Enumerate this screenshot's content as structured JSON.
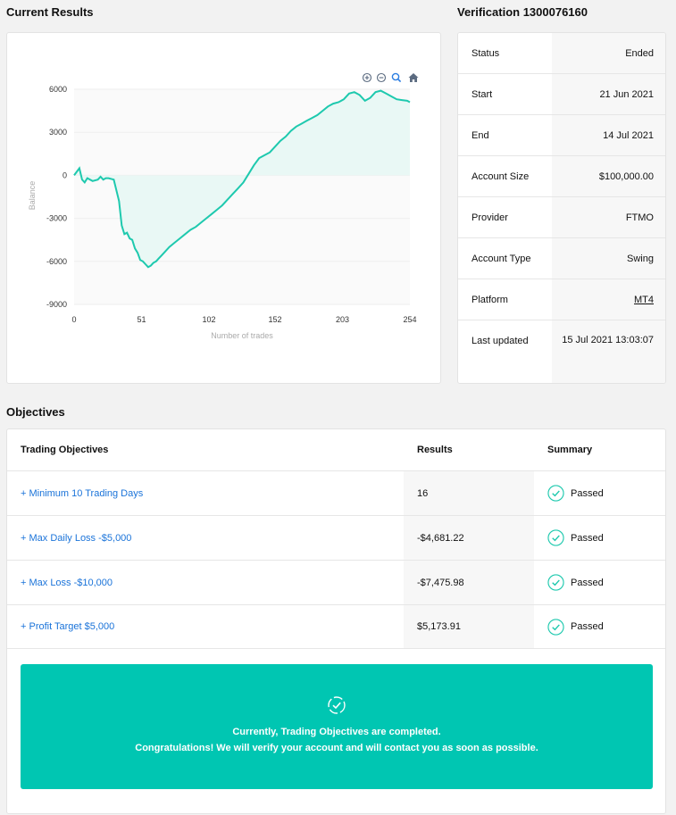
{
  "current_results": {
    "title": "Current Results",
    "toolbar": {
      "zoom_in_icon": "zoom-in-icon",
      "zoom_out_icon": "zoom-out-icon",
      "zoom_select_icon": "magnifier-icon",
      "reset_icon": "home-icon"
    }
  },
  "chart_data": {
    "type": "area",
    "xlabel": "Number of trades",
    "ylabel": "Balance",
    "xlim": [
      0,
      254
    ],
    "ylim": [
      -9000,
      6000
    ],
    "x_ticks": [
      "0",
      "51",
      "102",
      "152",
      "203",
      "254"
    ],
    "y_ticks": [
      "6000",
      "3000",
      "0",
      "-3000",
      "-6000",
      "-9000"
    ],
    "line_color": "#1ec9ae",
    "fill_color": "#e9f8f5",
    "series": [
      {
        "x": [
          0,
          4,
          6,
          8,
          10,
          14,
          18,
          20,
          22,
          24,
          26,
          30,
          34,
          36,
          38,
          40,
          42,
          44,
          46,
          48,
          50,
          52,
          54,
          56,
          58,
          60,
          62,
          64,
          66,
          68,
          72,
          76,
          80,
          84,
          88,
          92,
          96,
          100,
          104,
          108,
          112,
          116,
          120,
          124,
          128,
          132,
          136,
          140,
          144,
          148,
          152,
          156,
          160,
          164,
          168,
          172,
          176,
          180,
          184,
          188,
          192,
          196,
          200,
          204,
          208,
          212,
          216,
          220,
          224,
          228,
          232,
          236,
          240,
          244,
          248,
          252,
          254
        ],
        "y": [
          0,
          500,
          -300,
          -500,
          -200,
          -400,
          -300,
          -100,
          -300,
          -200,
          -200,
          -300,
          -1800,
          -3500,
          -4100,
          -4000,
          -4400,
          -4500,
          -5100,
          -5400,
          -5900,
          -6000,
          -6200,
          -6400,
          -6300,
          -6100,
          -6000,
          -5800,
          -5600,
          -5400,
          -5000,
          -4700,
          -4400,
          -4100,
          -3800,
          -3600,
          -3300,
          -3000,
          -2700,
          -2400,
          -2100,
          -1700,
          -1300,
          -900,
          -500,
          100,
          700,
          1200,
          1400,
          1600,
          2000,
          2400,
          2700,
          3100,
          3400,
          3600,
          3800,
          4000,
          4200,
          4500,
          4800,
          5000,
          5100,
          5300,
          5700,
          5800,
          5600,
          5200,
          5400,
          5800,
          5900,
          5700,
          5500,
          5300,
          5250,
          5200,
          5100
        ]
      }
    ]
  },
  "verification": {
    "title": "Verification 1300076160",
    "rows": [
      {
        "label": "Status",
        "value": "Ended"
      },
      {
        "label": "Start",
        "value": "21 Jun 2021"
      },
      {
        "label": "End",
        "value": "14 Jul 2021"
      },
      {
        "label": "Account Size",
        "value": "$100,000.00"
      },
      {
        "label": "Provider",
        "value": "FTMO"
      },
      {
        "label": "Account Type",
        "value": "Swing"
      },
      {
        "label": "Platform",
        "value": "MT4"
      },
      {
        "label": "Last updated",
        "value": "15 Jul 2021 13:03:07"
      }
    ]
  },
  "objectives": {
    "title": "Objectives",
    "headers": {
      "objective": "Trading Objectives",
      "results": "Results",
      "summary": "Summary"
    },
    "rows": [
      {
        "name": "+ Minimum 10 Trading Days",
        "result": "16",
        "summary": "Passed"
      },
      {
        "name": "+ Max Daily Loss -$5,000",
        "result": "-$4,681.22",
        "summary": "Passed"
      },
      {
        "name": "+ Max Loss -$10,000",
        "result": "-$7,475.98",
        "summary": "Passed"
      },
      {
        "name": "+ Profit Target $5,000",
        "result": "$5,173.91",
        "summary": "Passed"
      }
    ],
    "check_color": "#1ec9ae",
    "banner": {
      "icon": "check-badge-icon",
      "line1": "Currently, Trading Objectives are completed.",
      "line2": "Congratulations! We will verify your account and will contact you as soon as possible.",
      "color": "#00c6b2"
    }
  }
}
